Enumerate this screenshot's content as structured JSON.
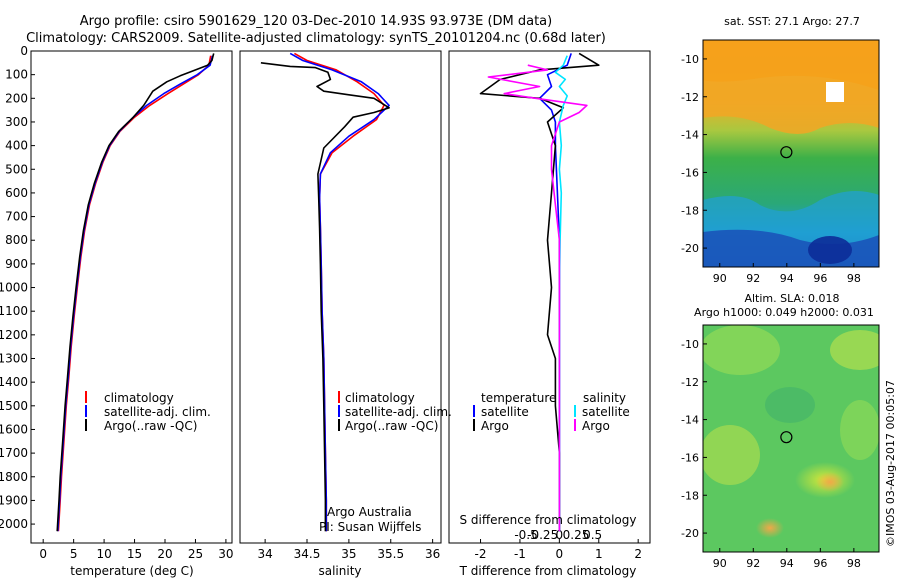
{
  "header": {
    "line1": "Argo profile: csiro 5901629_120 03-Dec-2010 14.93S 93.973E (DM data)",
    "line2": "Climatology: CARS2009. Satellite-adjusted climatology: synTS_20101204.nc (0.68d later)"
  },
  "colors": {
    "climatology": "#ff0000",
    "satellite": "#0000ff",
    "argo": "#000000",
    "satellite_s": "#00e5ff",
    "argo_s": "#ff00ff"
  },
  "chart_data": [
    {
      "type": "line",
      "id": "temperature",
      "xlabel": "temperature (deg C)",
      "ylabel": "",
      "xlim": [
        -2,
        31
      ],
      "ylim": [
        2080,
        0
      ],
      "xticks": [
        "0",
        "5",
        "10",
        "15",
        "20",
        "25",
        "30"
      ],
      "yticks": [
        "0",
        "100",
        "200",
        "300",
        "400",
        "500",
        "600",
        "700",
        "800",
        "900",
        "1000",
        "1100",
        "1200",
        "1300",
        "1400",
        "1500",
        "1600",
        "1700",
        "1800",
        "1900",
        "2000"
      ],
      "legend": [
        "climatology",
        "satellite-adj. clim.",
        "Argo(..raw -QC)"
      ],
      "series": [
        {
          "name": "climatology",
          "color_key": "climatology",
          "points": [
            [
              27.5,
              20
            ],
            [
              27.2,
              60
            ],
            [
              25.5,
              100
            ],
            [
              23,
              140
            ],
            [
              20.5,
              180
            ],
            [
              17.5,
              230
            ],
            [
              15,
              280
            ],
            [
              12.6,
              340
            ],
            [
              11,
              400
            ],
            [
              9.8,
              470
            ],
            [
              8.6,
              560
            ],
            [
              7.6,
              650
            ],
            [
              6.8,
              760
            ],
            [
              6.2,
              870
            ],
            [
              5.6,
              1000
            ],
            [
              5.1,
              1120
            ],
            [
              4.6,
              1250
            ],
            [
              4.2,
              1380
            ],
            [
              3.8,
              1500
            ],
            [
              3.4,
              1650
            ],
            [
              3.0,
              1800
            ],
            [
              2.8,
              1900
            ],
            [
              2.5,
              2030
            ]
          ]
        },
        {
          "name": "satellite-adj. clim.",
          "color_key": "satellite",
          "points": [
            [
              27.8,
              20
            ],
            [
              27.4,
              60
            ],
            [
              25.3,
              100
            ],
            [
              22.5,
              140
            ],
            [
              19.8,
              180
            ],
            [
              17,
              230
            ],
            [
              14.8,
              280
            ],
            [
              12.5,
              340
            ],
            [
              10.9,
              400
            ],
            [
              9.7,
              470
            ],
            [
              8.5,
              560
            ],
            [
              7.5,
              650
            ],
            [
              6.7,
              760
            ],
            [
              6.1,
              870
            ],
            [
              5.5,
              1000
            ],
            [
              5.0,
              1120
            ],
            [
              4.5,
              1250
            ],
            [
              4.1,
              1380
            ],
            [
              3.7,
              1500
            ],
            [
              3.3,
              1650
            ],
            [
              2.9,
              1800
            ],
            [
              2.7,
              1900
            ],
            [
              2.4,
              2030
            ]
          ]
        },
        {
          "name": "Argo(..raw -QC)",
          "color_key": "argo",
          "points": [
            [
              28,
              10
            ],
            [
              27.7,
              40
            ],
            [
              27,
              60
            ],
            [
              25.5,
              75
            ],
            [
              24,
              90
            ],
            [
              22.5,
              105
            ],
            [
              20.3,
              130
            ],
            [
              18,
              170
            ],
            [
              16.5,
              230
            ],
            [
              14.8,
              280
            ],
            [
              12.4,
              340
            ],
            [
              10.8,
              400
            ],
            [
              9.6,
              470
            ],
            [
              8.4,
              560
            ],
            [
              7.4,
              650
            ],
            [
              6.6,
              760
            ],
            [
              6.0,
              870
            ],
            [
              5.4,
              1000
            ],
            [
              4.9,
              1120
            ],
            [
              4.4,
              1250
            ],
            [
              4.0,
              1380
            ],
            [
              3.6,
              1500
            ],
            [
              3.2,
              1650
            ],
            [
              2.8,
              1800
            ],
            [
              2.6,
              1900
            ],
            [
              2.3,
              2030
            ]
          ]
        }
      ]
    },
    {
      "type": "line",
      "id": "salinity",
      "xlabel": "salinity",
      "xlim": [
        33.7,
        36.1
      ],
      "ylim": [
        2080,
        0
      ],
      "xticks": [
        "34",
        "34.5",
        "35",
        "35.5",
        "36"
      ],
      "legend": [
        "climatology",
        "satellite-adj. clim.",
        "Argo(..raw -QC)"
      ],
      "annotation": [
        "Argo Australia",
        "PI: Susan Wijffels"
      ],
      "series": [
        {
          "name": "climatology",
          "color_key": "climatology",
          "points": [
            [
              34.35,
              10
            ],
            [
              34.5,
              40
            ],
            [
              34.85,
              80
            ],
            [
              35.1,
              130
            ],
            [
              35.3,
              180
            ],
            [
              35.42,
              230
            ],
            [
              35.33,
              290
            ],
            [
              35.05,
              360
            ],
            [
              34.8,
              430
            ],
            [
              34.66,
              520
            ],
            [
              34.65,
              620
            ],
            [
              34.66,
              750
            ],
            [
              34.67,
              900
            ],
            [
              34.68,
              1100
            ],
            [
              34.7,
              1300
            ],
            [
              34.71,
              1500
            ],
            [
              34.72,
              1700
            ],
            [
              34.73,
              1900
            ],
            [
              34.73,
              2030
            ]
          ]
        },
        {
          "name": "satellite-adj. clim.",
          "color_key": "satellite",
          "points": [
            [
              34.3,
              10
            ],
            [
              34.45,
              40
            ],
            [
              34.8,
              80
            ],
            [
              35.15,
              130
            ],
            [
              35.35,
              180
            ],
            [
              35.48,
              230
            ],
            [
              35.3,
              290
            ],
            [
              35.0,
              360
            ],
            [
              34.78,
              430
            ],
            [
              34.66,
              520
            ],
            [
              34.65,
              620
            ],
            [
              34.66,
              750
            ],
            [
              34.67,
              900
            ],
            [
              34.68,
              1100
            ],
            [
              34.7,
              1300
            ],
            [
              34.71,
              1500
            ],
            [
              34.72,
              1700
            ],
            [
              34.73,
              1900
            ],
            [
              34.73,
              2030
            ]
          ]
        },
        {
          "name": "Argo(..raw -QC)",
          "color_key": "argo",
          "points": [
            [
              33.95,
              50
            ],
            [
              34.3,
              65
            ],
            [
              34.6,
              70
            ],
            [
              34.75,
              90
            ],
            [
              34.78,
              120
            ],
            [
              34.62,
              150
            ],
            [
              34.7,
              170
            ],
            [
              35.0,
              185
            ],
            [
              35.3,
              200
            ],
            [
              35.48,
              240
            ],
            [
              35.3,
              260
            ],
            [
              35.05,
              280
            ],
            [
              34.95,
              320
            ],
            [
              34.7,
              410
            ],
            [
              34.63,
              520
            ],
            [
              34.64,
              620
            ],
            [
              34.65,
              750
            ],
            [
              34.66,
              900
            ],
            [
              34.67,
              1100
            ],
            [
              34.69,
              1300
            ],
            [
              34.7,
              1500
            ],
            [
              34.71,
              1700
            ],
            [
              34.72,
              1900
            ],
            [
              34.72,
              2030
            ]
          ]
        }
      ]
    },
    {
      "type": "line",
      "id": "difference",
      "xlabel": "T difference from climatology",
      "xlabel_top": "S difference from climatology",
      "xlim": [
        -2.8,
        2.3
      ],
      "ylim": [
        2080,
        0
      ],
      "xticks": [
        "-2",
        "-1",
        "0",
        "1",
        "2"
      ],
      "xticks_top": [
        "-0.5",
        "-0.25",
        "0",
        "0.25",
        "0.5"
      ],
      "legend": [
        "temperature",
        "satellite",
        "Argo",
        "salinity",
        "satellite",
        "Argo"
      ],
      "series": [
        {
          "name": "T satellite",
          "color_key": "satellite",
          "points": [
            [
              0.3,
              10
            ],
            [
              0.2,
              60
            ],
            [
              -0.3,
              100
            ],
            [
              -0.2,
              150
            ],
            [
              -0.5,
              200
            ],
            [
              -0.2,
              250
            ],
            [
              -0.1,
              300
            ],
            [
              -0.1,
              400
            ],
            [
              -0.05,
              600
            ],
            [
              0,
              800
            ],
            [
              0,
              1000
            ],
            [
              0,
              1300
            ],
            [
              0,
              1600
            ],
            [
              0,
              2030
            ]
          ]
        },
        {
          "name": "T Argo",
          "color_key": "argo",
          "points": [
            [
              0.5,
              10
            ],
            [
              1.0,
              60
            ],
            [
              -0.5,
              80
            ],
            [
              -1.5,
              120
            ],
            [
              -2.0,
              180
            ],
            [
              -0.5,
              200
            ],
            [
              0.1,
              240
            ],
            [
              -0.3,
              300
            ],
            [
              -0.1,
              400
            ],
            [
              -0.2,
              600
            ],
            [
              -0.3,
              800
            ],
            [
              -0.2,
              1000
            ],
            [
              -0.3,
              1200
            ],
            [
              -0.1,
              1300
            ],
            [
              -0.1,
              1500
            ],
            [
              0,
              1700
            ],
            [
              0,
              2030
            ]
          ]
        },
        {
          "name": "S satellite",
          "color_key": "satellite_s",
          "points": [
            [
              0.2,
              20
            ],
            [
              0.1,
              60
            ],
            [
              -0.1,
              90
            ],
            [
              0.15,
              120
            ],
            [
              0.0,
              150
            ],
            [
              0.2,
              190
            ],
            [
              0.1,
              230
            ],
            [
              0.0,
              300
            ],
            [
              0.05,
              400
            ],
            [
              0.0,
              500
            ],
            [
              0.05,
              600
            ],
            [
              0.02,
              800
            ],
            [
              0.0,
              1000
            ],
            [
              0.0,
              1300
            ],
            [
              0.0,
              1600
            ],
            [
              0.0,
              2030
            ]
          ]
        },
        {
          "name": "S Argo",
          "color_key": "argo_s",
          "points": [
            [
              -0.8,
              60
            ],
            [
              -0.3,
              80
            ],
            [
              -1.8,
              110
            ],
            [
              -0.5,
              150
            ],
            [
              -1.4,
              180
            ],
            [
              -0.6,
              200
            ],
            [
              0.7,
              230
            ],
            [
              0.5,
              260
            ],
            [
              0.0,
              300
            ],
            [
              -0.2,
              400
            ],
            [
              -0.2,
              500
            ],
            [
              -0.1,
              650
            ],
            [
              0.0,
              800
            ],
            [
              0.0,
              1000
            ],
            [
              0.0,
              1300
            ],
            [
              0.0,
              1600
            ],
            [
              0.0,
              2030
            ]
          ]
        }
      ]
    },
    {
      "type": "heatmap",
      "id": "sst_map",
      "title": "sat. SST: 27.1  Argo: 27.7",
      "xlim": [
        89,
        99.5
      ],
      "ylim": [
        -21,
        -9
      ],
      "xticks": [
        "90",
        "92",
        "94",
        "96",
        "98"
      ],
      "yticks": [
        "-10",
        "-12",
        "-14",
        "-16",
        "-18",
        "-20"
      ],
      "marker": {
        "lon": 93.973,
        "lat": -14.93
      }
    },
    {
      "type": "heatmap",
      "id": "sla_map",
      "title": "Altim. SLA: 0.018",
      "subtitle": "Argo h1000: 0.049 h2000: 0.031",
      "xlim": [
        89,
        99.5
      ],
      "ylim": [
        -21,
        -9
      ],
      "xticks": [
        "90",
        "92",
        "94",
        "96",
        "98"
      ],
      "yticks": [
        "-10",
        "-12",
        "-14",
        "-16",
        "-18",
        "-20"
      ],
      "marker": {
        "lon": 93.973,
        "lat": -14.93
      }
    }
  ],
  "timestamp": "©IMOS 03-Aug-2017 00:05:07"
}
